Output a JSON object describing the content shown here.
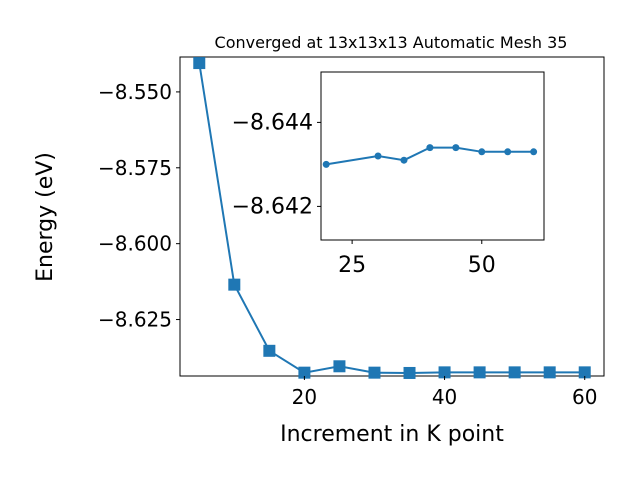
{
  "chart_data": [
    {
      "type": "line",
      "title": "Converged at 13x13x13 Automatic Mesh 35",
      "xlabel": "Increment in K point",
      "ylabel": "Energy (eV)",
      "xlim": [
        2.25,
        62.75
      ],
      "ylim": [
        -8.6436,
        -8.5385
      ],
      "x_ticks": [
        20,
        40,
        60
      ],
      "x_tick_labels": [
        "20",
        "40",
        "60"
      ],
      "y_ticks": [
        -8.55,
        -8.575,
        -8.6,
        -8.625
      ],
      "y_tick_labels": [
        "−8.550",
        "−8.575",
        "−8.600",
        "−8.625"
      ],
      "grid": false,
      "marker": "square",
      "color": "#1f77b4",
      "series": [
        {
          "x": [
            5,
            10,
            15,
            20,
            25,
            30,
            35,
            40,
            45,
            50,
            55,
            60
          ],
          "values": [
            -8.5405,
            -8.6135,
            -8.6353,
            -8.6425,
            -8.6404,
            -8.6425,
            -8.6426,
            -8.6424,
            -8.6424,
            -8.6424,
            -8.6424,
            -8.6424
          ]
        }
      ]
    },
    {
      "type": "line",
      "title": "",
      "inset": true,
      "xlim": [
        19,
        62
      ],
      "ylim": [
        -8.6412,
        -8.6452
      ],
      "x_ticks": [
        25,
        50
      ],
      "x_tick_labels": [
        "25",
        "50"
      ],
      "y_ticks": [
        -8.644,
        -8.642
      ],
      "y_tick_labels": [
        "−8.644",
        "−8.642"
      ],
      "grid": false,
      "marker": "circle",
      "color": "#1f77b4",
      "series": [
        {
          "x": [
            20,
            30,
            35,
            40,
            45,
            50,
            55,
            60
          ],
          "values": [
            -8.643,
            -8.6432,
            -8.6431,
            -8.6434,
            -8.6434,
            -8.6433,
            -8.6433,
            -8.6433
          ]
        }
      ]
    }
  ]
}
